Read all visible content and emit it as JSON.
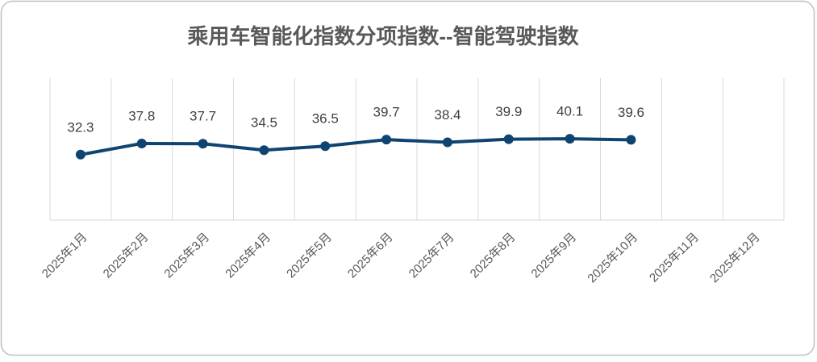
{
  "chart_data": {
    "type": "line",
    "title": "乘用车智能化指数分项指数--智能驾驶指数",
    "categories": [
      "2025年1月",
      "2025年2月",
      "2025年3月",
      "2025年4月",
      "2025年5月",
      "2025年6月",
      "2025年7月",
      "2025年8月",
      "2025年9月",
      "2025年10月",
      "2025年11月",
      "2025年12月"
    ],
    "series": [
      {
        "name": "智能驾驶指数",
        "color": "#0f4470",
        "values": [
          32.3,
          37.8,
          37.7,
          34.5,
          36.5,
          39.7,
          38.4,
          39.9,
          40.1,
          39.6,
          null,
          null
        ]
      }
    ],
    "ylim": [
      0,
      70
    ]
  }
}
